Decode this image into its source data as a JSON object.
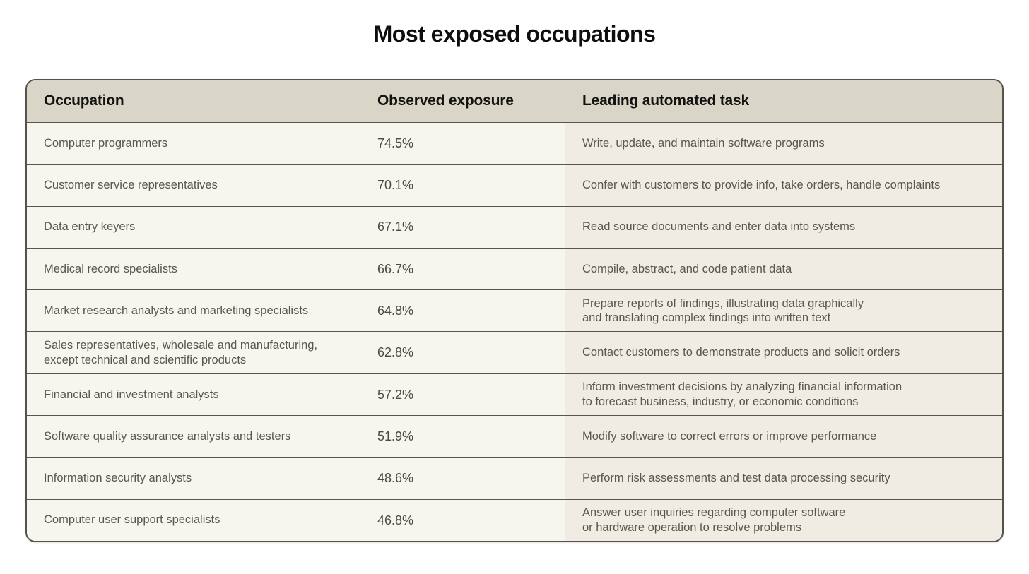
{
  "page": {
    "title": "Most exposed occupations"
  },
  "colors": {
    "page_background": "#ffffff",
    "header_background": "#d9d6c8",
    "left_columns_background": "#f6f5ee",
    "task_column_background": "#f0ebe3",
    "border": "#55524b",
    "header_text": "#121212",
    "body_text": "#5a564e"
  },
  "chart_data": {
    "type": "table",
    "title": "Most exposed occupations",
    "columns": [
      "Occupation",
      "Observed exposure",
      "Leading automated task"
    ],
    "rows": [
      {
        "occupation": "Computer programmers",
        "exposure": "74.5%",
        "exposure_value": 74.5,
        "task": "Write, update, and maintain software programs"
      },
      {
        "occupation": "Customer service representatives",
        "exposure": "70.1%",
        "exposure_value": 70.1,
        "task": "Confer with customers to provide info, take orders, handle complaints"
      },
      {
        "occupation": "Data entry keyers",
        "exposure": "67.1%",
        "exposure_value": 67.1,
        "task": "Read source documents and enter data into systems"
      },
      {
        "occupation": "Medical record specialists",
        "exposure": "66.7%",
        "exposure_value": 66.7,
        "task": "Compile, abstract, and code patient data"
      },
      {
        "occupation": "Market research analysts and marketing specialists",
        "exposure": "64.8%",
        "exposure_value": 64.8,
        "task": "Prepare reports of findings, illustrating data graphically\nand translating complex findings into written text"
      },
      {
        "occupation": "Sales representatives, wholesale and manufacturing,\nexcept technical and scientific products",
        "exposure": "62.8%",
        "exposure_value": 62.8,
        "task": "Contact customers to demonstrate products and solicit orders"
      },
      {
        "occupation": "Financial and investment analysts",
        "exposure": "57.2%",
        "exposure_value": 57.2,
        "task": "Inform investment decisions by analyzing financial information\nto forecast business, industry, or economic conditions"
      },
      {
        "occupation": "Software quality assurance analysts and testers",
        "exposure": "51.9%",
        "exposure_value": 51.9,
        "task": "Modify software to correct errors or improve performance"
      },
      {
        "occupation": "Information security analysts",
        "exposure": "48.6%",
        "exposure_value": 48.6,
        "task": "Perform risk assessments and test data processing security"
      },
      {
        "occupation": "Computer user support specialists",
        "exposure": "46.8%",
        "exposure_value": 46.8,
        "task": "Answer user inquiries regarding computer software\nor hardware operation to resolve problems"
      }
    ]
  }
}
